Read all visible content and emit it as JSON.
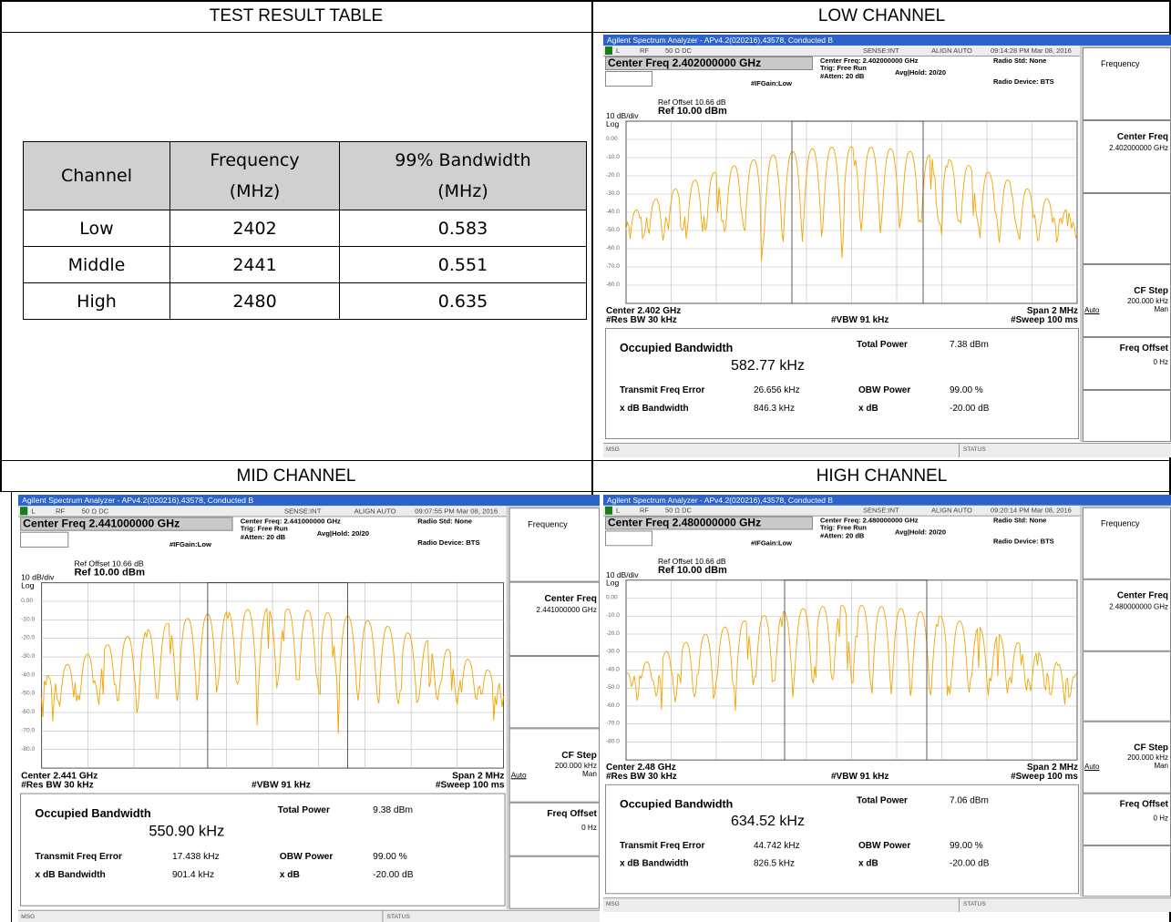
{
  "headings": {
    "table": "TEST RESULT TABLE",
    "low": "LOW CHANNEL",
    "mid": "MID CHANNEL",
    "high": "HIGH CHANNEL"
  },
  "table": {
    "header": [
      [
        "Channel"
      ],
      [
        "Frequency",
        "(MHz)"
      ],
      [
        "99% Bandwidth",
        "(MHz)"
      ]
    ],
    "rows": [
      [
        "Low",
        2402,
        0.583
      ],
      [
        "Middle",
        2441,
        0.551
      ],
      [
        "High",
        2480,
        0.635
      ]
    ]
  },
  "panels": [
    {
      "window_title": "Agilent Spectrum Analyzer - APv4.2(020216),43578, Conducted B",
      "status": [
        "L",
        "RF",
        "50 Ω  DC",
        "SENSE:INT",
        "ALIGN AUTO",
        "09:14:28 PM Mar 08, 2016"
      ],
      "center_freq_box": "Center Freq 2.402000000 GHz",
      "settings": [
        "Center Freq: 2.402000000 GHz",
        "Trig: Free Run",
        "Avg|Hold: 20/20",
        "#Atten: 20 dB",
        "#IFGain:Low",
        "Radio Std: None",
        "Radio Device: BTS"
      ],
      "ref_offset": "Ref Offset 10.66 dB",
      "scale": "10 dB/div",
      "ref_level": "Ref 10.00 dBm",
      "log": "Log",
      "y_labels": [
        "0.00",
        "-10.0",
        "-20.0",
        "-30.0",
        "-40.0",
        "-50.0",
        "-60.0",
        "-70.0",
        "-80.0"
      ],
      "bottom": [
        "Center 2.402 GHz",
        "#Res BW 30 kHz",
        "#VBW 91 kHz",
        "Span 2 MHz",
        "#Sweep 100 ms"
      ],
      "meas": [
        "Occupied Bandwidth",
        "582.77 kHz",
        "Total Power",
        "7.38 dBm",
        "Transmit Freq Error",
        "26.656 kHz",
        "OBW Power",
        "99.00 %",
        "x dB Bandwidth",
        "846.3 kHz",
        "x dB",
        "-20.00 dB"
      ],
      "menu": [
        "Frequency",
        "Center Freq",
        "2.402000000 GHz",
        "CF Step",
        "200.000 kHz",
        "Auto",
        "Man",
        "Freq Offset",
        "0 Hz"
      ],
      "footer": [
        "MSG",
        "STATUS"
      ]
    },
    {
      "window_title": "Agilent Spectrum Analyzer - APv4.2(020216),43578, Conducted B",
      "status": [
        "L",
        "RF",
        "50 Ω  DC",
        "SENSE:INT",
        "ALIGN AUTO",
        "09:07:55 PM Mar 08, 2016"
      ],
      "center_freq_box": "Center Freq 2.441000000 GHz",
      "settings": [
        "Center Freq: 2.441000000 GHz",
        "Trig: Free Run",
        "Avg|Hold: 20/20",
        "#Atten: 20 dB",
        "#IFGain:Low",
        "Radio Std: None",
        "Radio Device: BTS"
      ],
      "ref_offset": "Ref Offset 10.66 dB",
      "scale": "10 dB/div",
      "ref_level": "Ref 10.00 dBm",
      "log": "Log",
      "y_labels": [
        "0.00",
        "-10.0",
        "-20.0",
        "-30.0",
        "-40.0",
        "-50.0",
        "-60.0",
        "-70.0",
        "-80.0"
      ],
      "bottom": [
        "Center 2.441 GHz",
        "#Res BW 30 kHz",
        "#VBW 91 kHz",
        "Span 2 MHz",
        "#Sweep 100 ms"
      ],
      "meas": [
        "Occupied Bandwidth",
        "550.90 kHz",
        "Total Power",
        "9.38 dBm",
        "Transmit Freq Error",
        "17.438 kHz",
        "OBW Power",
        "99.00 %",
        "x dB Bandwidth",
        "901.4 kHz",
        "x dB",
        "-20.00 dB"
      ],
      "menu": [
        "Frequency",
        "Center Freq",
        "2.441000000 GHz",
        "CF Step",
        "200.000 kHz",
        "Auto",
        "Man",
        "Freq Offset",
        "0 Hz"
      ],
      "footer": [
        "MSG",
        "STATUS"
      ]
    },
    {
      "window_title": "Agilent Spectrum Analyzer - APv4.2(020216),43578, Conducted B",
      "status": [
        "L",
        "RF",
        "50 Ω  DC",
        "SENSE:INT",
        "ALIGN AUTO",
        "09:20:14 PM Mar 08, 2016"
      ],
      "center_freq_box": "Center Freq 2.480000000 GHz",
      "settings": [
        "Center Freq: 2.480000000 GHz",
        "Trig: Free Run",
        "Avg|Hold: 20/20",
        "#Atten: 20 dB",
        "#IFGain:Low",
        "Radio Std: None",
        "Radio Device: BTS"
      ],
      "ref_offset": "Ref Offset 10.66 dB",
      "scale": "10 dB/div",
      "ref_level": "Ref 10.00 dBm",
      "log": "Log",
      "y_labels": [
        "0.00",
        "-10.0",
        "-20.0",
        "-30.0",
        "-40.0",
        "-50.0",
        "-60.0",
        "-70.0",
        "-80.0"
      ],
      "bottom": [
        "Center 2.48 GHz",
        "#Res BW 30 kHz",
        "#VBW 91 kHz",
        "Span 2 MHz",
        "#Sweep 100 ms"
      ],
      "meas": [
        "Occupied Bandwidth",
        "634.52 kHz",
        "Total Power",
        "7.06 dBm",
        "Transmit Freq Error",
        "44.742 kHz",
        "OBW Power",
        "99.00 %",
        "x dB Bandwidth",
        "826.5 kHz",
        "x dB",
        "-20.00 dB"
      ],
      "menu": [
        "Frequency",
        "Center Freq",
        "2.480000000 GHz",
        "CF Step",
        "200.000 kHz",
        "Auto",
        "Man",
        "Freq Offset",
        "0 Hz"
      ],
      "footer": [
        "MSG",
        "STATUS"
      ]
    }
  ]
}
